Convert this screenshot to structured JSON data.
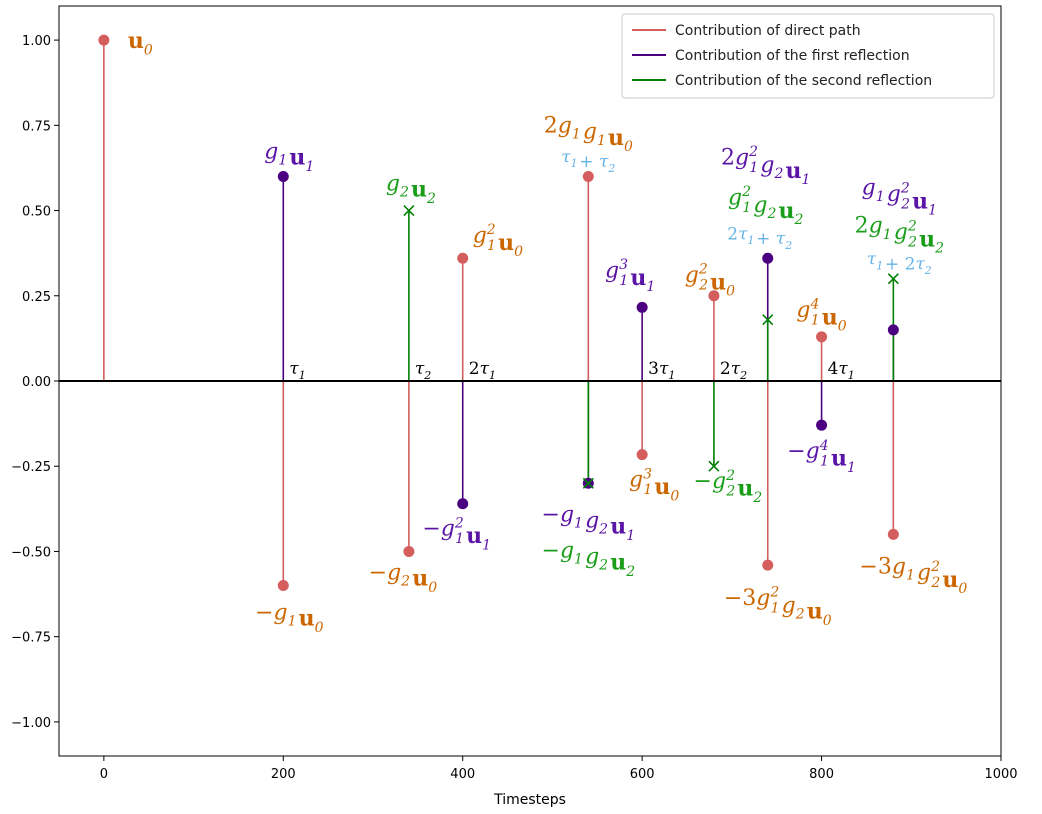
{
  "chart_data": {
    "type": "stem",
    "xlabel": "Timesteps",
    "xlim": [
      -50,
      1000
    ],
    "ylim": [
      -1.1,
      1.1
    ],
    "xticks": [
      0,
      200,
      400,
      600,
      800,
      1000
    ],
    "yticks": [
      -1.0,
      -0.75,
      -0.5,
      -0.25,
      0.0,
      0.25,
      0.5,
      0.75,
      1.0
    ],
    "xtick_labels": [
      "0",
      "200",
      "400",
      "600",
      "800",
      "1000"
    ],
    "ytick_labels": [
      "−1.00",
      "−0.75",
      "−0.50",
      "−0.25",
      "0.00",
      "0.25",
      "0.50",
      "0.75",
      "1.00"
    ],
    "grid": false,
    "legend_position": "top-right",
    "colors": {
      "direct": "#d45d5d",
      "first": "#4b0082",
      "second": "#008000",
      "annotation_orange": "#cc6600",
      "annotation_purple": "#5a14a6",
      "annotation_green": "#1a9e1a",
      "annotation_blue": "#66b3e6"
    },
    "series": [
      {
        "name": "Contribution of direct path",
        "marker": "circle",
        "points": [
          {
            "x": 0,
            "y": 1.0
          },
          {
            "x": 200,
            "y": -0.6
          },
          {
            "x": 340,
            "y": -0.5
          },
          {
            "x": 400,
            "y": 0.36
          },
          {
            "x": 540,
            "y": 0.6
          },
          {
            "x": 600,
            "y": -0.216
          },
          {
            "x": 680,
            "y": 0.25
          },
          {
            "x": 740,
            "y": -0.54
          },
          {
            "x": 800,
            "y": 0.1296
          },
          {
            "x": 880,
            "y": -0.45
          }
        ]
      },
      {
        "name": "Contribution of the first reflection",
        "marker": "circle",
        "points": [
          {
            "x": 200,
            "y": 0.6
          },
          {
            "x": 400,
            "y": -0.36
          },
          {
            "x": 540,
            "y": -0.3
          },
          {
            "x": 600,
            "y": 0.216
          },
          {
            "x": 740,
            "y": 0.36
          },
          {
            "x": 800,
            "y": -0.1296
          },
          {
            "x": 880,
            "y": 0.15
          }
        ]
      },
      {
        "name": "Contribution of the second reflection",
        "marker": "x",
        "points": [
          {
            "x": 340,
            "y": 0.5
          },
          {
            "x": 540,
            "y": -0.3
          },
          {
            "x": 680,
            "y": -0.25
          },
          {
            "x": 740,
            "y": 0.18
          },
          {
            "x": 880,
            "y": 0.3
          }
        ]
      }
    ],
    "delay_labels": [
      {
        "x": 200,
        "text": "τ1"
      },
      {
        "x": 340,
        "text": "τ2"
      },
      {
        "x": 400,
        "text": "2τ1"
      },
      {
        "x": 600,
        "text": "3τ1"
      },
      {
        "x": 680,
        "text": "2τ2"
      },
      {
        "x": 800,
        "text": "4τ1"
      }
    ],
    "annotations": [
      {
        "x": 0,
        "y": 1.0,
        "text": "u0",
        "color": "orange"
      },
      {
        "x": 200,
        "y": -0.6,
        "text": "−g1 u0",
        "color": "orange"
      },
      {
        "x": 200,
        "y": 0.6,
        "text": "g1 u1",
        "color": "purple"
      },
      {
        "x": 340,
        "y": 0.5,
        "text": "g2 u2",
        "color": "green"
      },
      {
        "x": 340,
        "y": -0.5,
        "text": "−g2 u0",
        "color": "orange"
      },
      {
        "x": 400,
        "y": 0.36,
        "text": "g1² u0",
        "color": "orange"
      },
      {
        "x": 400,
        "y": -0.36,
        "text": "−g1² u1",
        "color": "purple"
      },
      {
        "x": 540,
        "y": 0.6,
        "text": "2g1 g1 u0",
        "color": "orange"
      },
      {
        "x": 540,
        "y": 0.6,
        "text": "τ1 + τ2",
        "color": "blue"
      },
      {
        "x": 540,
        "y": -0.3,
        "text": "−g1 g2 u1",
        "color": "purple"
      },
      {
        "x": 540,
        "y": -0.3,
        "text": "−g1 g2 u2",
        "color": "green"
      },
      {
        "x": 600,
        "y": 0.216,
        "text": "g1³ u1",
        "color": "purple"
      },
      {
        "x": 600,
        "y": -0.216,
        "text": "g1³ u0",
        "color": "orange"
      },
      {
        "x": 680,
        "y": 0.25,
        "text": "g2² u0",
        "color": "orange"
      },
      {
        "x": 680,
        "y": -0.25,
        "text": "−g2² u2",
        "color": "green"
      },
      {
        "x": 740,
        "y": 0.36,
        "text": "2g1² g2 u1",
        "color": "purple"
      },
      {
        "x": 740,
        "y": 0.36,
        "text": "g1² g2 u2",
        "color": "green"
      },
      {
        "x": 740,
        "y": 0.36,
        "text": "2τ1 + τ2",
        "color": "blue"
      },
      {
        "x": 740,
        "y": -0.54,
        "text": "−3g1² g2 u0",
        "color": "orange"
      },
      {
        "x": 800,
        "y": 0.1296,
        "text": "g1⁴ u0",
        "color": "orange"
      },
      {
        "x": 800,
        "y": -0.1296,
        "text": "−g1⁴ u1",
        "color": "purple"
      },
      {
        "x": 880,
        "y": 0.3,
        "text": "g1 g2² u1",
        "color": "purple"
      },
      {
        "x": 880,
        "y": 0.3,
        "text": "2g1 g2² u2",
        "color": "green"
      },
      {
        "x": 880,
        "y": 0.3,
        "text": "τ1 + 2τ2",
        "color": "blue"
      },
      {
        "x": 880,
        "y": -0.45,
        "text": "−3g1 g2² u0",
        "color": "orange"
      }
    ]
  }
}
